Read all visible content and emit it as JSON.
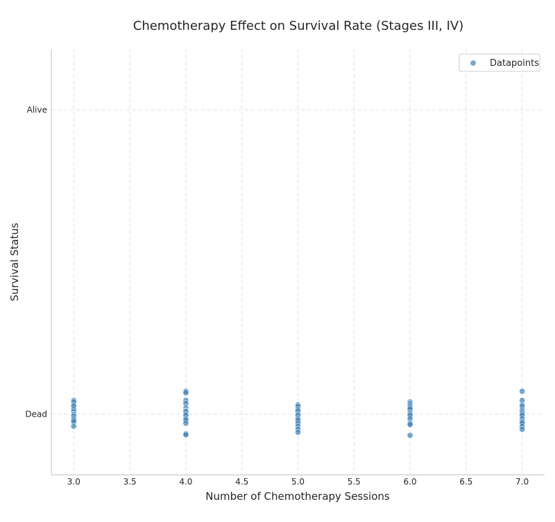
{
  "chart_data": {
    "type": "scatter",
    "title": "Chemotherapy Effect on Survival Rate (Stages III, IV)",
    "xlabel": "Number of Chemotherapy Sessions",
    "ylabel": "Survival Status",
    "xlim": [
      2.8,
      7.2
    ],
    "ylim": [
      -0.2,
      1.2
    ],
    "x_ticks": [
      3.0,
      3.5,
      4.0,
      4.5,
      5.0,
      5.5,
      6.0,
      6.5,
      7.0
    ],
    "x_tick_labels": [
      "3.0",
      "3.5",
      "4.0",
      "4.5",
      "5.0",
      "5.5",
      "6.0",
      "6.5",
      "7.0"
    ],
    "y_ticks": [
      0,
      1
    ],
    "y_tick_labels": [
      "Dead",
      "Alive"
    ],
    "grid": true,
    "legend_position": "top-right",
    "point_color": "#3b80b5",
    "series": [
      {
        "name": "Datapoints",
        "points": [
          [
            3,
            0.045
          ],
          [
            3,
            0.04
          ],
          [
            3,
            0.03
          ],
          [
            3,
            0.025
          ],
          [
            3,
            0.015
          ],
          [
            3,
            0.008
          ],
          [
            3,
            0.0
          ],
          [
            3,
            -0.003
          ],
          [
            3,
            -0.008
          ],
          [
            3,
            -0.015
          ],
          [
            3,
            -0.02
          ],
          [
            3,
            -0.025
          ],
          [
            3,
            -0.04
          ],
          [
            4,
            0.075
          ],
          [
            4,
            0.07
          ],
          [
            4,
            0.045
          ],
          [
            4,
            0.035
          ],
          [
            4,
            0.02
          ],
          [
            4,
            0.01
          ],
          [
            4,
            0.008
          ],
          [
            4,
            0.0
          ],
          [
            4,
            -0.005
          ],
          [
            4,
            -0.015
          ],
          [
            4,
            -0.02
          ],
          [
            4,
            -0.03
          ],
          [
            4,
            -0.065
          ],
          [
            4,
            -0.068
          ],
          [
            5,
            0.03
          ],
          [
            5,
            0.025
          ],
          [
            5,
            0.015
          ],
          [
            5,
            0.01
          ],
          [
            5,
            0.0
          ],
          [
            5,
            -0.005
          ],
          [
            5,
            -0.015
          ],
          [
            5,
            -0.02
          ],
          [
            5,
            -0.03
          ],
          [
            5,
            -0.04
          ],
          [
            5,
            -0.05
          ],
          [
            5,
            -0.06
          ],
          [
            6,
            0.04
          ],
          [
            6,
            0.035
          ],
          [
            6,
            0.03
          ],
          [
            6,
            0.025
          ],
          [
            6,
            0.02
          ],
          [
            6,
            0.015
          ],
          [
            6,
            0.005
          ],
          [
            6,
            0.0
          ],
          [
            6,
            -0.005
          ],
          [
            6,
            -0.015
          ],
          [
            6,
            -0.03
          ],
          [
            6,
            -0.035
          ],
          [
            6,
            -0.07
          ],
          [
            7,
            0.075
          ],
          [
            7,
            0.045
          ],
          [
            7,
            0.03
          ],
          [
            7,
            0.025
          ],
          [
            7,
            0.015
          ],
          [
            7,
            0.01
          ],
          [
            7,
            0.005
          ],
          [
            7,
            0.0
          ],
          [
            7,
            -0.005
          ],
          [
            7,
            -0.015
          ],
          [
            7,
            -0.025
          ],
          [
            7,
            -0.03
          ],
          [
            7,
            -0.04
          ],
          [
            7,
            -0.05
          ]
        ]
      }
    ]
  }
}
